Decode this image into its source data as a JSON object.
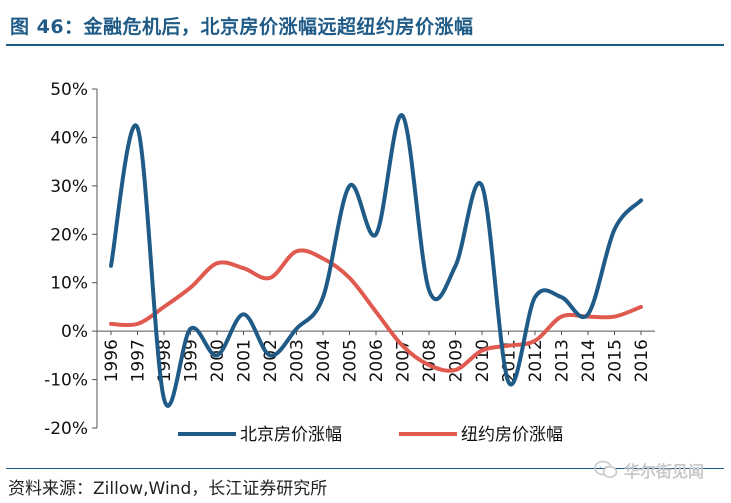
{
  "header": {
    "title": "图 46：金融危机后，北京房价涨幅远超纽约房价涨幅"
  },
  "footer": {
    "source": "资料来源：Zillow,Wind，长江证券研究所",
    "watermark": "华尔街见闻"
  },
  "chart_data": {
    "type": "line",
    "title": "",
    "xlabel": "",
    "ylabel": "",
    "categories": [
      "1996",
      "1997",
      "1998",
      "1999",
      "2000",
      "2001",
      "2002",
      "2003",
      "2004",
      "2005",
      "2006",
      "2007",
      "2008",
      "2009",
      "2010",
      "2011",
      "2012",
      "2013",
      "2014",
      "2015",
      "2016"
    ],
    "ylim": [
      -20,
      50
    ],
    "y_ticks": [
      50,
      40,
      30,
      20,
      10,
      0,
      -10,
      -20
    ],
    "y_tick_labels": [
      "50%",
      "40%",
      "30%",
      "20%",
      "10%",
      "0%",
      "-10%",
      "-20%"
    ],
    "grid": false,
    "legend_position": "bottom",
    "series": [
      {
        "name": "北京房价涨幅",
        "color": "#1f5b86",
        "values": [
          13.5,
          42,
          -14,
          0.5,
          -5,
          3.5,
          -5,
          0.5,
          7,
          30,
          20,
          44.5,
          8.5,
          13.5,
          30,
          -10.5,
          7,
          7,
          3.5,
          21,
          27
        ]
      },
      {
        "name": "纽约房价涨幅",
        "color": "#e05a50",
        "values": [
          1.5,
          1.5,
          5,
          9,
          14,
          13,
          11,
          16.5,
          15,
          11,
          4,
          -3,
          -7,
          -8,
          -4,
          -3,
          -2,
          3,
          3,
          3,
          5
        ]
      }
    ]
  }
}
